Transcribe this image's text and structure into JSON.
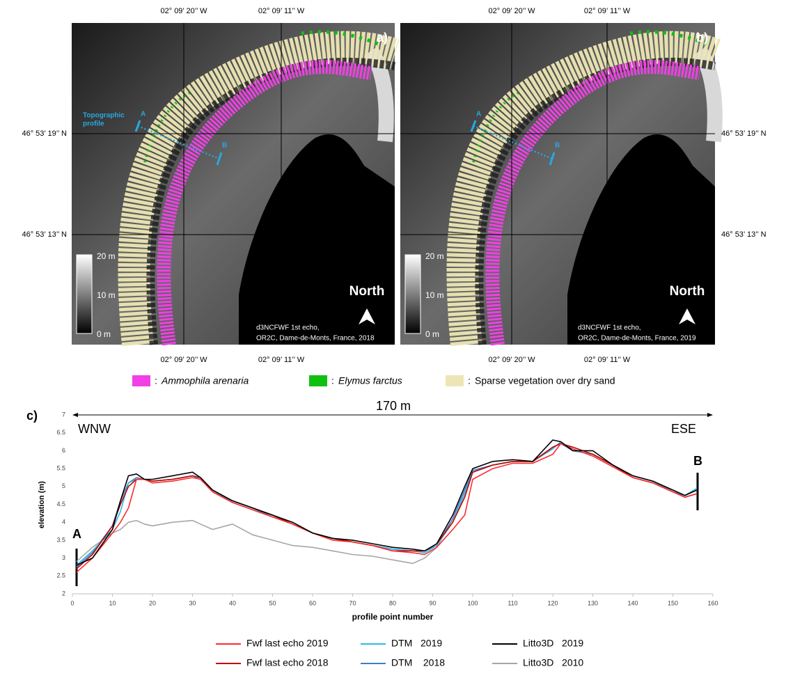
{
  "maps": {
    "lon_labels": [
      "02° 09’ 20’’ W",
      "02° 09’ 11’’ W"
    ],
    "lat_labels": [
      "46° 53’ 19’’ N",
      "46° 53’ 13’’ N"
    ],
    "panels": [
      {
        "label": "a)",
        "profile_label": [
          "Topographic",
          "profile"
        ],
        "point_a": "A",
        "point_b": "B",
        "scale": [
          "20 m",
          "10 m",
          "0 m"
        ],
        "north": "North",
        "credit": [
          "d3NCFWF 1st echo,",
          "OR2C, Dame-de-Monts, France, 2018"
        ]
      },
      {
        "label": "b)",
        "point_a": "A",
        "point_b": "B",
        "scale": [
          "20 m",
          "10 m",
          "0 m"
        ],
        "north": "North",
        "credit": [
          "d3NCFWF 1st echo,",
          "OR2C, Dame-de-Monts, France, 2019"
        ]
      }
    ],
    "separator": ":",
    "legend": [
      {
        "label": "Ammophila arenaria",
        "color": "#f040e6",
        "italic": true
      },
      {
        "label": "Elymus farctus",
        "color": "#10c010",
        "italic": true
      },
      {
        "label": "Sparse vegetation over dry sand",
        "color": "#ede6b4",
        "italic": false
      }
    ]
  },
  "chart_data": {
    "type": "line",
    "label": "c)",
    "annotations": {
      "distance": "170 m",
      "left": "WNW",
      "right": "ESE",
      "start": "A",
      "end": "B"
    },
    "x_label": "profile point number",
    "y_label": "elevation (m)",
    "xlim": [
      0,
      160
    ],
    "xticks": [
      0,
      10,
      20,
      30,
      40,
      50,
      60,
      70,
      80,
      90,
      100,
      110,
      120,
      130,
      140,
      150,
      160
    ],
    "ylim": [
      2,
      7
    ],
    "yticks": [
      2,
      2.5,
      3,
      3.5,
      4,
      4.5,
      5,
      5.5,
      6,
      6.5,
      7
    ],
    "grid": false,
    "x": [
      1,
      5,
      10,
      12,
      14,
      16,
      18,
      20,
      25,
      30,
      32,
      35,
      40,
      45,
      50,
      55,
      60,
      65,
      70,
      75,
      80,
      85,
      88,
      91,
      95,
      98,
      100,
      105,
      110,
      115,
      120,
      122,
      125,
      130,
      135,
      140,
      145,
      150,
      153,
      156
    ],
    "series": [
      {
        "name": "Fwf last echo 2019",
        "color": "#ff2a2a",
        "values": [
          2.6,
          3.0,
          3.7,
          4.0,
          4.4,
          5.2,
          5.2,
          5.1,
          5.15,
          5.25,
          5.2,
          4.85,
          4.55,
          4.35,
          4.15,
          3.95,
          3.7,
          3.5,
          3.45,
          3.35,
          3.2,
          3.15,
          3.1,
          3.3,
          3.8,
          4.2,
          5.2,
          5.5,
          5.65,
          5.65,
          5.9,
          6.2,
          6.05,
          5.85,
          5.55,
          5.25,
          5.1,
          4.85,
          4.7,
          4.8
        ]
      },
      {
        "name": "DTM   2019",
        "color": "#2db7ea",
        "values": [
          2.8,
          3.2,
          3.8,
          4.3,
          5.1,
          5.2,
          5.2,
          5.15,
          5.2,
          5.3,
          5.2,
          4.9,
          4.55,
          4.35,
          4.15,
          3.95,
          3.7,
          3.55,
          3.45,
          3.35,
          3.25,
          3.2,
          3.15,
          3.35,
          4.0,
          4.8,
          5.4,
          5.6,
          5.7,
          5.7,
          6.05,
          6.25,
          6.0,
          5.9,
          5.6,
          5.3,
          5.15,
          4.85,
          4.75,
          4.95
        ]
      },
      {
        "name": "Litto3D   2019",
        "color": "#000000",
        "values": [
          2.8,
          3.0,
          3.8,
          4.6,
          5.3,
          5.35,
          5.2,
          5.2,
          5.3,
          5.4,
          5.25,
          4.9,
          4.6,
          4.4,
          4.2,
          4.0,
          3.7,
          3.55,
          3.5,
          3.4,
          3.3,
          3.25,
          3.2,
          3.4,
          4.2,
          5.0,
          5.5,
          5.7,
          5.75,
          5.7,
          6.3,
          6.25,
          6.0,
          6.0,
          5.6,
          5.3,
          5.15,
          4.9,
          4.75,
          4.9
        ]
      },
      {
        "name": "Fwf last echo 2018",
        "color": "#c00000",
        "values": [
          2.7,
          3.1,
          3.9,
          4.5,
          5.0,
          5.2,
          5.2,
          5.15,
          5.2,
          5.3,
          5.25,
          4.9,
          4.6,
          4.4,
          4.2,
          3.95,
          3.7,
          3.55,
          3.45,
          3.35,
          3.2,
          3.2,
          3.2,
          3.4,
          4.0,
          4.7,
          5.4,
          5.6,
          5.7,
          5.7,
          6.1,
          6.2,
          6.1,
          5.9,
          5.6,
          5.25,
          5.1,
          4.85,
          4.7,
          4.8
        ]
      },
      {
        "name": "DTM    2018",
        "color": "#3f7fc4",
        "values": [
          2.75,
          3.15,
          3.9,
          4.6,
          5.1,
          5.25,
          5.2,
          5.15,
          5.2,
          5.3,
          5.2,
          4.9,
          4.6,
          4.4,
          4.15,
          3.95,
          3.7,
          3.55,
          3.45,
          3.35,
          3.25,
          3.2,
          3.2,
          3.35,
          4.1,
          4.9,
          5.45,
          5.6,
          5.7,
          5.7,
          6.1,
          6.2,
          6.0,
          5.9,
          5.6,
          5.3,
          5.15,
          4.85,
          4.75,
          4.9
        ]
      },
      {
        "name": "Litto3D   2010",
        "color": "#a6a6a6",
        "values": [
          2.9,
          3.3,
          3.7,
          3.8,
          4.0,
          4.05,
          3.95,
          3.9,
          4.0,
          4.05,
          3.95,
          3.8,
          3.95,
          3.65,
          3.5,
          3.35,
          3.3,
          3.2,
          3.1,
          3.05,
          2.95,
          2.85,
          3.0,
          3.3,
          4.1,
          4.9,
          5.4,
          5.6,
          5.7,
          5.7,
          6.1,
          6.2,
          6.0,
          5.9,
          5.6,
          5.3,
          5.15,
          4.85,
          4.75,
          4.9
        ]
      }
    ]
  }
}
